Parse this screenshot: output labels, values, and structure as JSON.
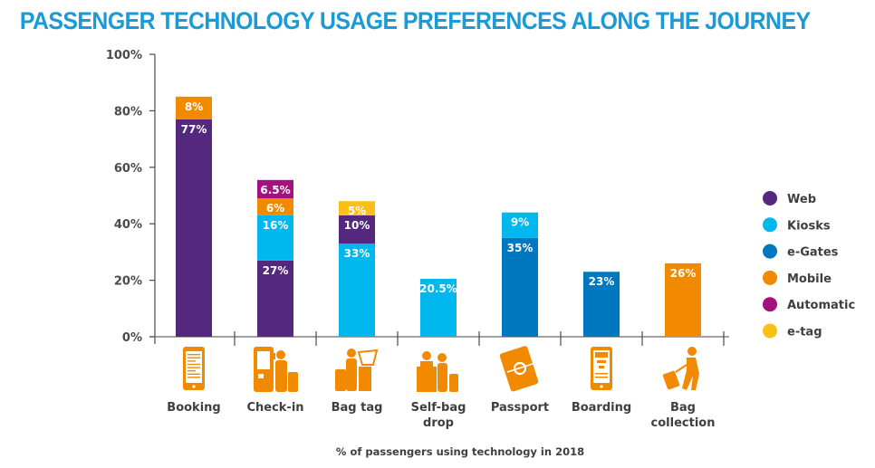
{
  "chart_data": {
    "type": "bar",
    "stacked": true,
    "title": "PASSENGER TECHNOLOGY USAGE PREFERENCES ALONG THE JOURNEY",
    "xlabel": "% of passengers using technology in 2018",
    "ylabel": "",
    "ylim": [
      0,
      100
    ],
    "yticks": [
      0,
      20,
      40,
      60,
      80,
      100
    ],
    "ytick_labels": [
      "0%",
      "20%",
      "40%",
      "60%",
      "80%",
      "100%"
    ],
    "grid": false,
    "legend_position": "right",
    "categories": [
      {
        "label": "Booking",
        "icon": "mobile-phone-icon"
      },
      {
        "label": "Check-in",
        "icon": "kiosk-traveler-icon"
      },
      {
        "label": "Bag tag",
        "icon": "bag-tag-kiosk-icon"
      },
      {
        "label": "Self-bag drop",
        "icon": "bag-drop-counter-icon"
      },
      {
        "label": "Passport",
        "icon": "passport-icon"
      },
      {
        "label": "Boarding",
        "icon": "mobile-boarding-pass-icon"
      },
      {
        "label": "Bag collection",
        "icon": "traveler-with-luggage-icon"
      }
    ],
    "series": [
      {
        "name": "Web",
        "color": "#55287f"
      },
      {
        "name": "Kiosks",
        "color": "#00b8ee"
      },
      {
        "name": "e-Gates",
        "color": "#0077be"
      },
      {
        "name": "Mobile",
        "color": "#f18a00"
      },
      {
        "name": "Automatic",
        "color": "#a3127f"
      },
      {
        "name": "e-tag",
        "color": "#fbc016"
      }
    ],
    "stacks": [
      [
        {
          "series": "Web",
          "value": 77,
          "label": "77%"
        },
        {
          "series": "Mobile",
          "value": 8,
          "label": "8%"
        }
      ],
      [
        {
          "series": "Web",
          "value": 27,
          "label": "27%"
        },
        {
          "series": "Kiosks",
          "value": 16,
          "label": "16%"
        },
        {
          "series": "Mobile",
          "value": 6,
          "label": "6%"
        },
        {
          "series": "Automatic",
          "value": 6.5,
          "label": "6.5%"
        }
      ],
      [
        {
          "series": "Kiosks",
          "value": 33,
          "label": "33%"
        },
        {
          "series": "Web",
          "value": 10,
          "label": "10%"
        },
        {
          "series": "e-tag",
          "value": 5,
          "label": "5%"
        }
      ],
      [
        {
          "series": "Kiosks",
          "value": 20.5,
          "label": "20.5%"
        }
      ],
      [
        {
          "series": "e-Gates",
          "value": 35,
          "label": "35%"
        },
        {
          "series": "Kiosks",
          "value": 9,
          "label": "9%"
        }
      ],
      [
        {
          "series": "e-Gates",
          "value": 23,
          "label": "23%"
        }
      ],
      [
        {
          "series": "Mobile",
          "value": 26,
          "label": "26%"
        }
      ]
    ]
  },
  "icon_color": "#f18a00"
}
